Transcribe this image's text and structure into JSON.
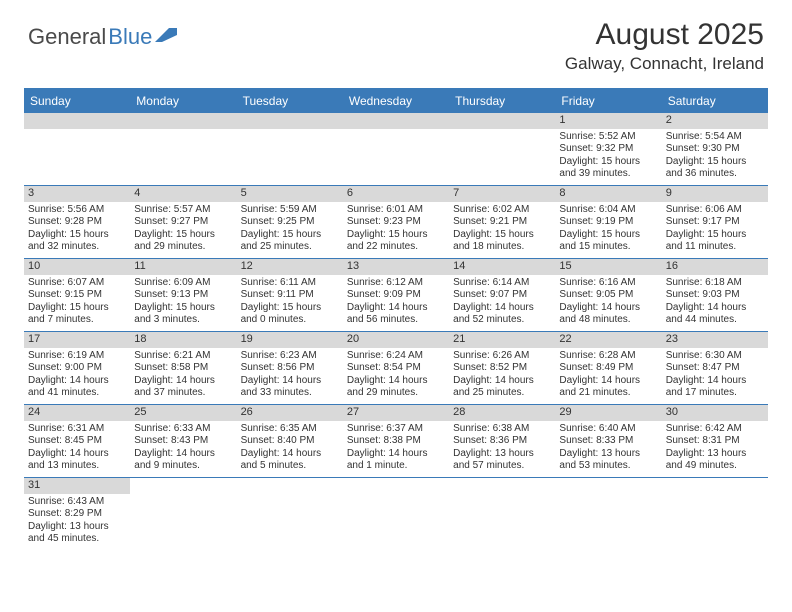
{
  "logo": {
    "text1": "General",
    "text2": "Blue"
  },
  "title": "August 2025",
  "location": "Galway, Connacht, Ireland",
  "colors": {
    "primary": "#3a7ab8",
    "daynum_bg": "#d9d9d9",
    "text": "#333333",
    "logo_gray": "#4a4a4a"
  },
  "dayNames": [
    "Sunday",
    "Monday",
    "Tuesday",
    "Wednesday",
    "Thursday",
    "Friday",
    "Saturday"
  ],
  "weeks": [
    [
      null,
      null,
      null,
      null,
      null,
      {
        "n": "1",
        "sr": "Sunrise: 5:52 AM",
        "ss": "Sunset: 9:32 PM",
        "dl": "Daylight: 15 hours and 39 minutes."
      },
      {
        "n": "2",
        "sr": "Sunrise: 5:54 AM",
        "ss": "Sunset: 9:30 PM",
        "dl": "Daylight: 15 hours and 36 minutes."
      }
    ],
    [
      {
        "n": "3",
        "sr": "Sunrise: 5:56 AM",
        "ss": "Sunset: 9:28 PM",
        "dl": "Daylight: 15 hours and 32 minutes."
      },
      {
        "n": "4",
        "sr": "Sunrise: 5:57 AM",
        "ss": "Sunset: 9:27 PM",
        "dl": "Daylight: 15 hours and 29 minutes."
      },
      {
        "n": "5",
        "sr": "Sunrise: 5:59 AM",
        "ss": "Sunset: 9:25 PM",
        "dl": "Daylight: 15 hours and 25 minutes."
      },
      {
        "n": "6",
        "sr": "Sunrise: 6:01 AM",
        "ss": "Sunset: 9:23 PM",
        "dl": "Daylight: 15 hours and 22 minutes."
      },
      {
        "n": "7",
        "sr": "Sunrise: 6:02 AM",
        "ss": "Sunset: 9:21 PM",
        "dl": "Daylight: 15 hours and 18 minutes."
      },
      {
        "n": "8",
        "sr": "Sunrise: 6:04 AM",
        "ss": "Sunset: 9:19 PM",
        "dl": "Daylight: 15 hours and 15 minutes."
      },
      {
        "n": "9",
        "sr": "Sunrise: 6:06 AM",
        "ss": "Sunset: 9:17 PM",
        "dl": "Daylight: 15 hours and 11 minutes."
      }
    ],
    [
      {
        "n": "10",
        "sr": "Sunrise: 6:07 AM",
        "ss": "Sunset: 9:15 PM",
        "dl": "Daylight: 15 hours and 7 minutes."
      },
      {
        "n": "11",
        "sr": "Sunrise: 6:09 AM",
        "ss": "Sunset: 9:13 PM",
        "dl": "Daylight: 15 hours and 3 minutes."
      },
      {
        "n": "12",
        "sr": "Sunrise: 6:11 AM",
        "ss": "Sunset: 9:11 PM",
        "dl": "Daylight: 15 hours and 0 minutes."
      },
      {
        "n": "13",
        "sr": "Sunrise: 6:12 AM",
        "ss": "Sunset: 9:09 PM",
        "dl": "Daylight: 14 hours and 56 minutes."
      },
      {
        "n": "14",
        "sr": "Sunrise: 6:14 AM",
        "ss": "Sunset: 9:07 PM",
        "dl": "Daylight: 14 hours and 52 minutes."
      },
      {
        "n": "15",
        "sr": "Sunrise: 6:16 AM",
        "ss": "Sunset: 9:05 PM",
        "dl": "Daylight: 14 hours and 48 minutes."
      },
      {
        "n": "16",
        "sr": "Sunrise: 6:18 AM",
        "ss": "Sunset: 9:03 PM",
        "dl": "Daylight: 14 hours and 44 minutes."
      }
    ],
    [
      {
        "n": "17",
        "sr": "Sunrise: 6:19 AM",
        "ss": "Sunset: 9:00 PM",
        "dl": "Daylight: 14 hours and 41 minutes."
      },
      {
        "n": "18",
        "sr": "Sunrise: 6:21 AM",
        "ss": "Sunset: 8:58 PM",
        "dl": "Daylight: 14 hours and 37 minutes."
      },
      {
        "n": "19",
        "sr": "Sunrise: 6:23 AM",
        "ss": "Sunset: 8:56 PM",
        "dl": "Daylight: 14 hours and 33 minutes."
      },
      {
        "n": "20",
        "sr": "Sunrise: 6:24 AM",
        "ss": "Sunset: 8:54 PM",
        "dl": "Daylight: 14 hours and 29 minutes."
      },
      {
        "n": "21",
        "sr": "Sunrise: 6:26 AM",
        "ss": "Sunset: 8:52 PM",
        "dl": "Daylight: 14 hours and 25 minutes."
      },
      {
        "n": "22",
        "sr": "Sunrise: 6:28 AM",
        "ss": "Sunset: 8:49 PM",
        "dl": "Daylight: 14 hours and 21 minutes."
      },
      {
        "n": "23",
        "sr": "Sunrise: 6:30 AM",
        "ss": "Sunset: 8:47 PM",
        "dl": "Daylight: 14 hours and 17 minutes."
      }
    ],
    [
      {
        "n": "24",
        "sr": "Sunrise: 6:31 AM",
        "ss": "Sunset: 8:45 PM",
        "dl": "Daylight: 14 hours and 13 minutes."
      },
      {
        "n": "25",
        "sr": "Sunrise: 6:33 AM",
        "ss": "Sunset: 8:43 PM",
        "dl": "Daylight: 14 hours and 9 minutes."
      },
      {
        "n": "26",
        "sr": "Sunrise: 6:35 AM",
        "ss": "Sunset: 8:40 PM",
        "dl": "Daylight: 14 hours and 5 minutes."
      },
      {
        "n": "27",
        "sr": "Sunrise: 6:37 AM",
        "ss": "Sunset: 8:38 PM",
        "dl": "Daylight: 14 hours and 1 minute."
      },
      {
        "n": "28",
        "sr": "Sunrise: 6:38 AM",
        "ss": "Sunset: 8:36 PM",
        "dl": "Daylight: 13 hours and 57 minutes."
      },
      {
        "n": "29",
        "sr": "Sunrise: 6:40 AM",
        "ss": "Sunset: 8:33 PM",
        "dl": "Daylight: 13 hours and 53 minutes."
      },
      {
        "n": "30",
        "sr": "Sunrise: 6:42 AM",
        "ss": "Sunset: 8:31 PM",
        "dl": "Daylight: 13 hours and 49 minutes."
      }
    ],
    [
      {
        "n": "31",
        "sr": "Sunrise: 6:43 AM",
        "ss": "Sunset: 8:29 PM",
        "dl": "Daylight: 13 hours and 45 minutes."
      },
      null,
      null,
      null,
      null,
      null,
      null
    ]
  ]
}
